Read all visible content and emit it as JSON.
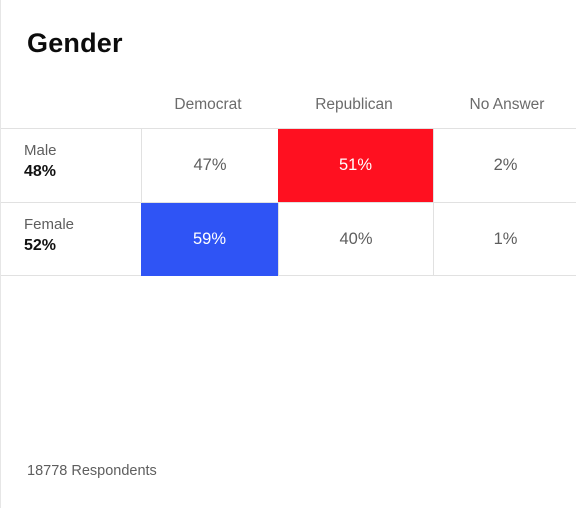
{
  "title": "Gender",
  "footer": "18778 Respondents",
  "colors": {
    "democrat": "#2f54f5",
    "republican": "#ff1020"
  },
  "chart_data": {
    "type": "table",
    "title": "Gender",
    "columns": [
      "Democrat",
      "Republican",
      "No Answer"
    ],
    "rows": [
      {
        "label": "Male",
        "share": "48%",
        "values": [
          "47%",
          "51%",
          "2%"
        ],
        "winner": 1
      },
      {
        "label": "Female",
        "share": "52%",
        "values": [
          "59%",
          "40%",
          "1%"
        ],
        "winner": 0
      }
    ],
    "respondents": 18778
  }
}
